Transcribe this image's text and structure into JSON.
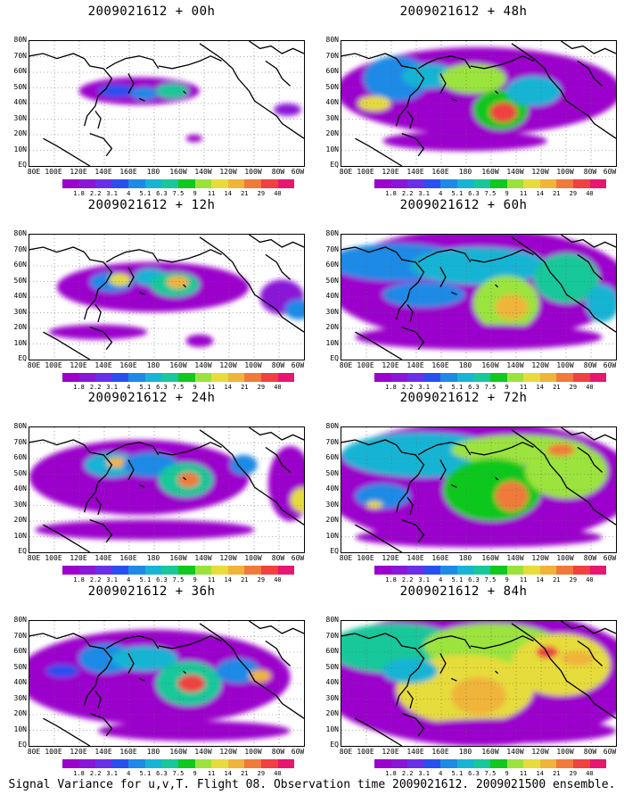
{
  "caption": "Signal Variance for u,v,T. Flight 08. Observation time 2009021612. 2009021500 ensemble.",
  "lat_labels": [
    "80N",
    "70N",
    "60N",
    "50N",
    "40N",
    "30N",
    "20N",
    "10N",
    "EQ"
  ],
  "lon_labels": [
    "80E",
    "100E",
    "120E",
    "140E",
    "160E",
    "180",
    "160W",
    "140W",
    "120W",
    "100W",
    "80W",
    "60W"
  ],
  "colorbar": {
    "labels": [
      "1.8",
      "2.2",
      "3.1",
      "4",
      "5.1",
      "6.3",
      "7.5",
      "9",
      "11",
      "14",
      "21",
      "29",
      "40"
    ],
    "colors": [
      "#9b00cc",
      "#8a16d8",
      "#6a30e8",
      "#2850f0",
      "#1e8ae6",
      "#18b4d4",
      "#16c89a",
      "#10c81e",
      "#9be33c",
      "#e6dc3a",
      "#f0b43a",
      "#f07a3a",
      "#f04040",
      "#e8166e"
    ]
  },
  "panels": [
    {
      "title": "2009021612 + 00h",
      "level": 0
    },
    {
      "title": "2009021612 + 48h",
      "level": 4
    },
    {
      "title": "2009021612 + 12h",
      "level": 1
    },
    {
      "title": "2009021612 + 60h",
      "level": 5
    },
    {
      "title": "2009021612 + 24h",
      "level": 2
    },
    {
      "title": "2009021612 + 72h",
      "level": 6
    },
    {
      "title": "2009021612 + 36h",
      "level": 3
    },
    {
      "title": "2009021612 + 84h",
      "level": 7
    }
  ]
}
